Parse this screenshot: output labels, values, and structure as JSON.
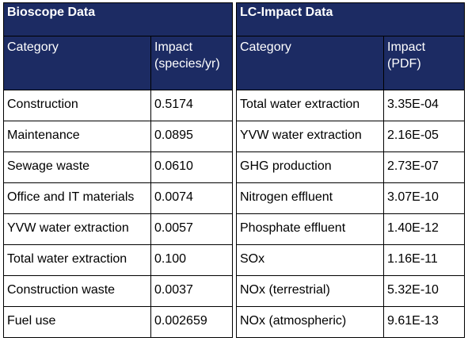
{
  "bioscope": {
    "title": "Bioscope Data",
    "headers": {
      "category": "Category",
      "impact_line1": "Impact",
      "impact_line2": "(species/yr)"
    },
    "rows": [
      {
        "category": "Construction",
        "impact": "0.5174"
      },
      {
        "category": "Maintenance",
        "impact": "0.0895"
      },
      {
        "category": "Sewage waste",
        "impact": "0.0610"
      },
      {
        "category": "Office and IT materials",
        "impact": "0.0074"
      },
      {
        "category": "YVW water extraction",
        "impact": "0.0057"
      },
      {
        "category": "Total water extraction",
        "impact": "0.100"
      },
      {
        "category": "Construction waste",
        "impact": "0.0037"
      },
      {
        "category": "Fuel use",
        "impact": "0.002659"
      }
    ]
  },
  "lcimpact": {
    "title": "LC-Impact Data",
    "headers": {
      "category": "Category",
      "impact_line1": "Impact",
      "impact_line2": "(PDF)"
    },
    "rows": [
      {
        "category": "Total water extraction",
        "impact": "3.35E-04"
      },
      {
        "category": "YVW water extraction",
        "impact": "2.16E-05"
      },
      {
        "category": "GHG production",
        "impact": "2.73E-07"
      },
      {
        "category": "Nitrogen effluent",
        "impact": "3.07E-10"
      },
      {
        "category": "Phosphate effluent",
        "impact": "1.40E-12"
      },
      {
        "category": "SOx",
        "impact": "1.16E-11"
      },
      {
        "category": "NOx (terrestrial)",
        "impact": "5.32E-10"
      },
      {
        "category": "NOx (atmospheric)",
        "impact": "9.61E-13"
      }
    ]
  },
  "colors": {
    "header_bg": "#1c2b63",
    "header_text": "#ffffff",
    "border": "#000000"
  }
}
